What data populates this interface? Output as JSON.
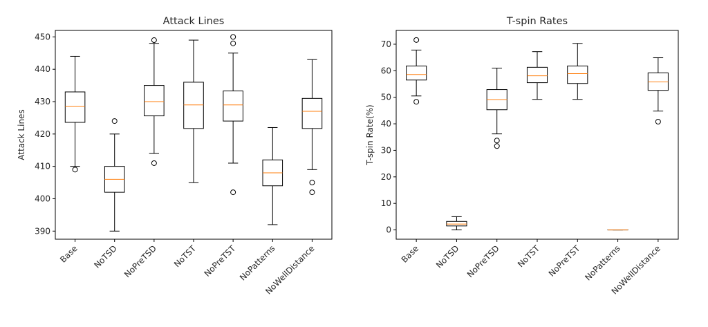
{
  "chart_data": [
    {
      "type": "boxplot",
      "title": "Attack Lines",
      "xlabel": "",
      "ylabel": "Attack Lines",
      "ylim": [
        387.5,
        452
      ],
      "yticks": [
        390,
        400,
        410,
        420,
        430,
        440,
        450
      ],
      "grid": false,
      "categories": [
        "Base",
        "NoTSD",
        "NoPreTSD",
        "NoTST",
        "NoPreTST",
        "NoPatterns",
        "NoWellDistance"
      ],
      "boxes": [
        {
          "whisker_low": 410,
          "q1": 423.6,
          "median": 428.5,
          "q3": 433,
          "whisker_high": 444,
          "outliers": [
            409
          ]
        },
        {
          "whisker_low": 390,
          "q1": 402,
          "median": 406,
          "q3": 410,
          "whisker_high": 420,
          "outliers": [
            424
          ]
        },
        {
          "whisker_low": 414,
          "q1": 425.6,
          "median": 430,
          "q3": 435,
          "whisker_high": 448,
          "outliers": [
            449,
            411
          ]
        },
        {
          "whisker_low": 405,
          "q1": 421.7,
          "median": 429,
          "q3": 436,
          "whisker_high": 449,
          "outliers": []
        },
        {
          "whisker_low": 411,
          "q1": 424,
          "median": 429,
          "q3": 433.3,
          "whisker_high": 445,
          "outliers": [
            450,
            448,
            402
          ]
        },
        {
          "whisker_low": 392,
          "q1": 404,
          "median": 408,
          "q3": 412,
          "whisker_high": 422,
          "outliers": []
        },
        {
          "whisker_low": 409,
          "q1": 421.7,
          "median": 427,
          "q3": 431,
          "whisker_high": 443,
          "outliers": [
            405,
            402
          ]
        }
      ],
      "colors": {
        "box": "#000000",
        "median": "#ff7f0e"
      }
    },
    {
      "type": "boxplot",
      "title": "T-spin Rates",
      "xlabel": "",
      "ylabel": "T-spin Rate(%)",
      "ylim": [
        -3.5,
        75.2
      ],
      "yticks": [
        0,
        10,
        20,
        30,
        40,
        50,
        60,
        70
      ],
      "grid": false,
      "categories": [
        "Base",
        "NoTSD",
        "NoPreTSD",
        "NoTST",
        "NoPreTST",
        "NoPatterns",
        "NoWellDistance"
      ],
      "boxes": [
        {
          "whisker_low": 50.5,
          "q1": 56.5,
          "median": 58.6,
          "q3": 61.8,
          "whisker_high": 67.8,
          "outliers": [
            71.6,
            48.3
          ]
        },
        {
          "whisker_low": 0,
          "q1": 1.5,
          "median": 2.2,
          "q3": 3.2,
          "whisker_high": 5,
          "outliers": []
        },
        {
          "whisker_low": 36.2,
          "q1": 45.3,
          "median": 49.1,
          "q3": 52.9,
          "whisker_high": 61,
          "outliers": [
            33.7,
            31.6
          ]
        },
        {
          "whisker_low": 49.2,
          "q1": 55.5,
          "median": 58.1,
          "q3": 61.3,
          "whisker_high": 67.2,
          "outliers": []
        },
        {
          "whisker_low": 49.2,
          "q1": 55.2,
          "median": 58.9,
          "q3": 61.8,
          "whisker_high": 70.3,
          "outliers": []
        },
        {
          "whisker_low": 0,
          "q1": 0,
          "median": 0,
          "q3": 0,
          "whisker_high": 0,
          "outliers": []
        },
        {
          "whisker_low": 44.8,
          "q1": 52.6,
          "median": 55.8,
          "q3": 59.2,
          "whisker_high": 64.9,
          "outliers": [
            40.8
          ]
        }
      ],
      "colors": {
        "box": "#000000",
        "median": "#ff7f0e"
      }
    }
  ]
}
